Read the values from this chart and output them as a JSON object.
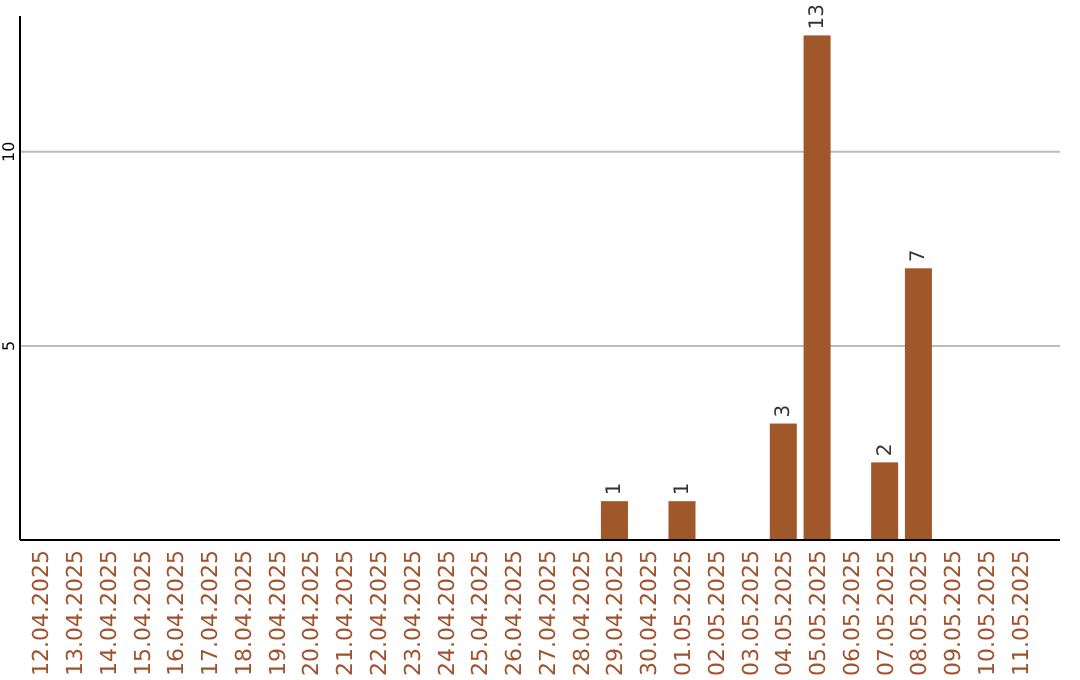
{
  "chart_data": {
    "type": "bar",
    "categories": [
      "12.04.2025",
      "13.04.2025",
      "14.04.2025",
      "15.04.2025",
      "16.04.2025",
      "17.04.2025",
      "18.04.2025",
      "19.04.2025",
      "20.04.2025",
      "21.04.2025",
      "22.04.2025",
      "23.04.2025",
      "24.04.2025",
      "25.04.2025",
      "26.04.2025",
      "27.04.2025",
      "28.04.2025",
      "29.04.2025",
      "30.04.2025",
      "01.05.2025",
      "02.05.2025",
      "03.05.2025",
      "04.05.2025",
      "05.05.2025",
      "06.05.2025",
      "07.05.2025",
      "08.05.2025",
      "09.05.2025",
      "10.05.2025",
      "11.05.2025"
    ],
    "values": [
      null,
      null,
      null,
      null,
      null,
      null,
      null,
      null,
      null,
      null,
      null,
      null,
      null,
      null,
      null,
      null,
      null,
      1,
      null,
      1,
      null,
      null,
      3,
      13,
      null,
      2,
      7,
      null,
      null,
      null
    ],
    "value_labels": [
      null,
      null,
      null,
      null,
      null,
      null,
      null,
      null,
      null,
      null,
      null,
      null,
      null,
      null,
      null,
      null,
      null,
      "1",
      null,
      "1",
      null,
      null,
      "3",
      "13",
      null,
      "2",
      "7",
      null,
      null,
      null
    ],
    "color": "#a0582a",
    "ylim": [
      0,
      13.5
    ],
    "yticks": [
      5,
      10
    ],
    "grid": "y"
  }
}
